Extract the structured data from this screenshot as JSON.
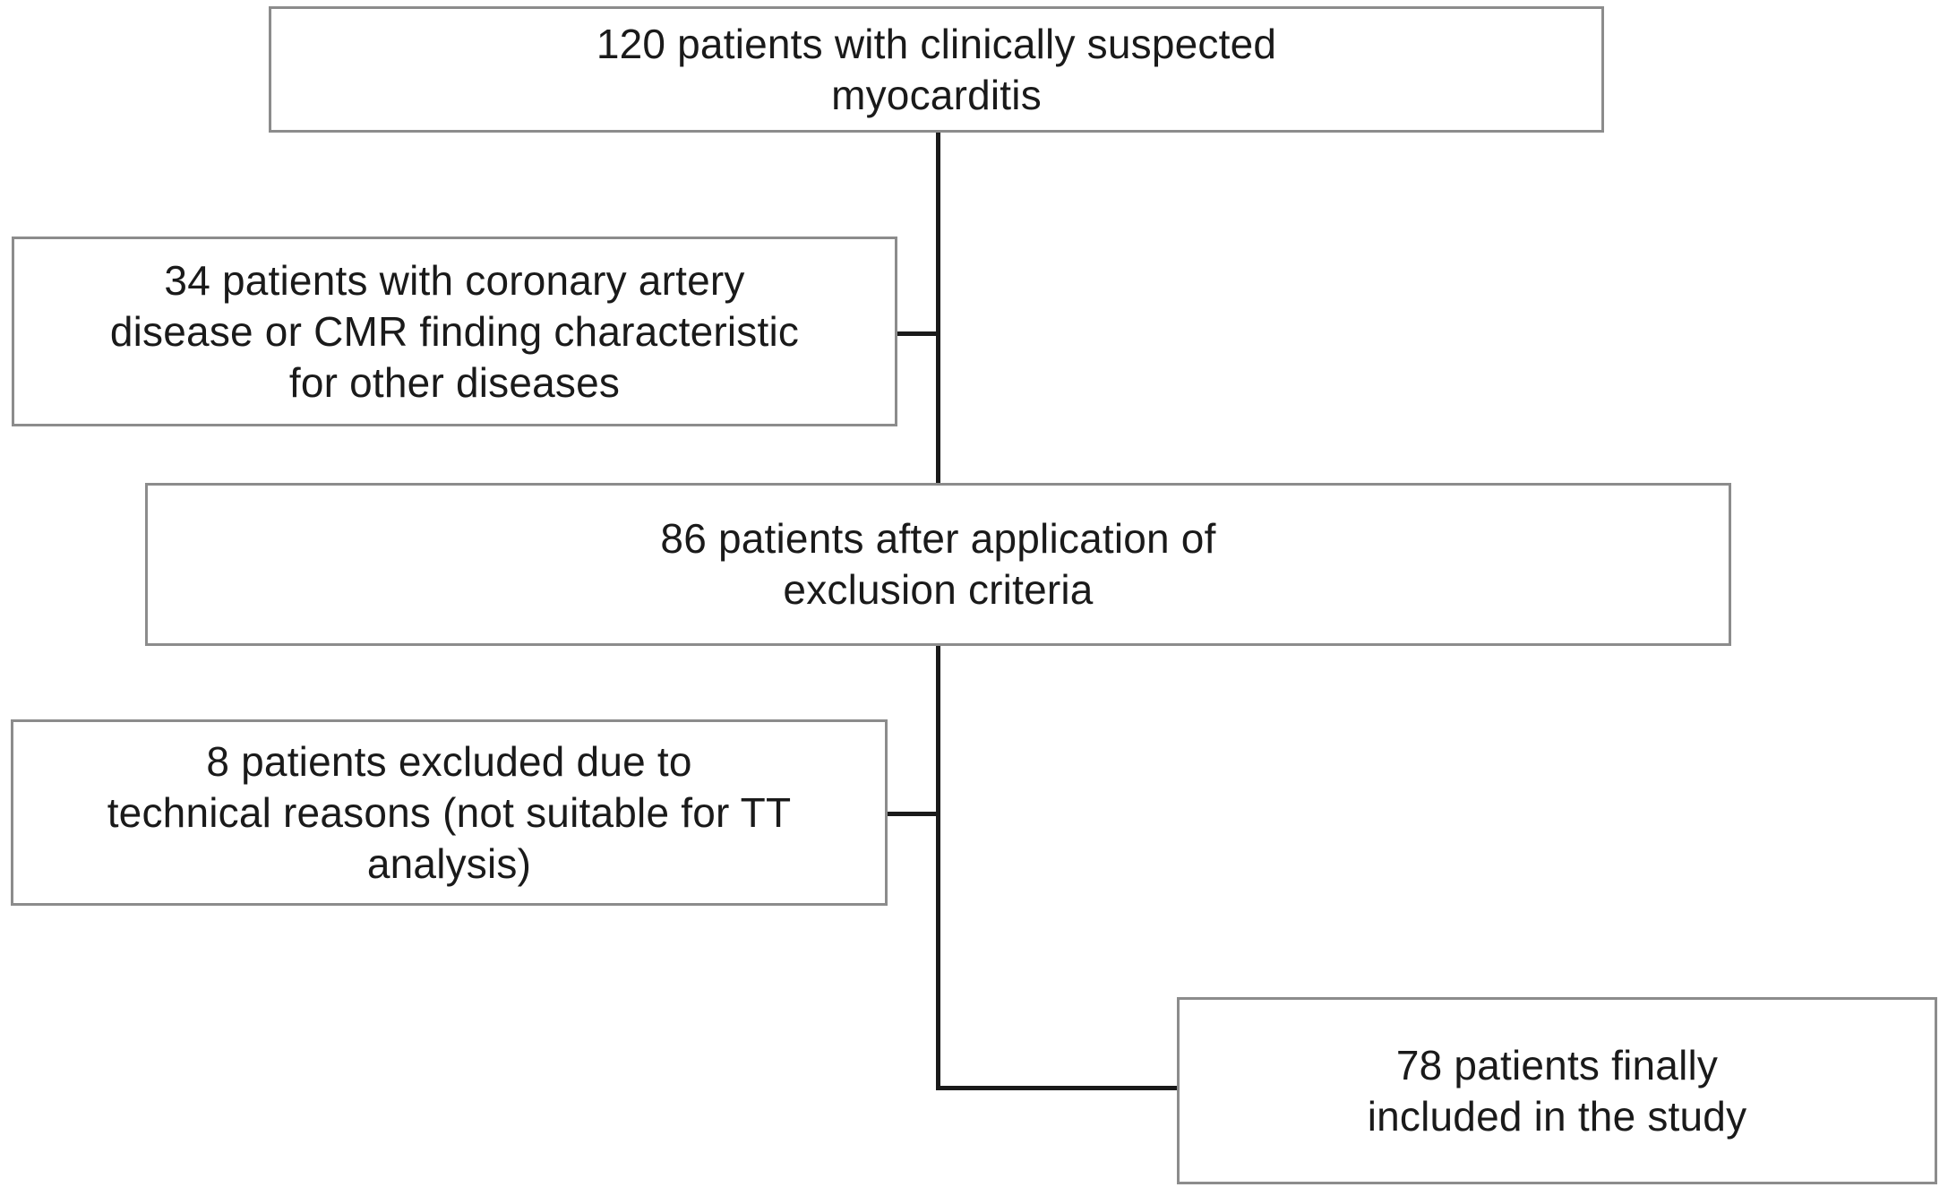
{
  "figure": {
    "title": "Patient inclusion flowchart",
    "background": "#ffffff",
    "text_color": "#1a1a1a",
    "box_border_color": "#8c8c8c",
    "connector_color": "#1a1a1a"
  },
  "flowchart": {
    "nodes": [
      {
        "text": "120 patients with clinically suspected myocarditis",
        "count": "120",
        "lines": [
          "120 patients with clinically suspected",
          "myocarditis"
        ]
      },
      {
        "text": "34 patients with coronary artery disease or CMR finding characteristic for other diseases",
        "count": "34",
        "lines": [
          "34 patients with coronary artery",
          "disease or CMR finding characteristic",
          "for other diseases"
        ]
      },
      {
        "text": "86 patients after application of exclusion criteria",
        "count": "86",
        "lines": [
          "86 patients after application of",
          "exclusion criteria"
        ]
      },
      {
        "text": "8 patients excluded due to technical reasons (not suitable for TT analysis)",
        "count": "8",
        "lines": [
          "8 patients excluded due to",
          "technical reasons (not suitable for TT",
          "analysis)"
        ]
      },
      {
        "text": "78 patients finally included in the study",
        "count": "78",
        "lines": [
          "78 patients finally",
          "included in the study"
        ]
      }
    ]
  }
}
